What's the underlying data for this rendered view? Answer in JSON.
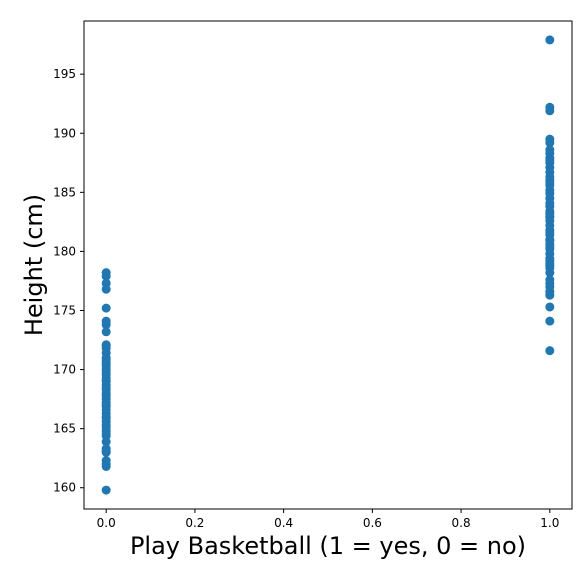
{
  "chart_data": {
    "type": "scatter",
    "title": "",
    "xlabel": "Play Basketball (1 = yes, 0 = no)",
    "ylabel": "Height (cm)",
    "xlim": [
      -0.05,
      1.05
    ],
    "ylim": [
      158.2,
      199.5
    ],
    "xticks": [
      0.0,
      0.2,
      0.4,
      0.6,
      0.8,
      1.0
    ],
    "xtick_labels": [
      "0.0",
      "0.2",
      "0.4",
      "0.6",
      "0.8",
      "1.0"
    ],
    "yticks": [
      160,
      165,
      170,
      175,
      180,
      185,
      190,
      195
    ],
    "ytick_labels": [
      "160",
      "165",
      "170",
      "175",
      "180",
      "185",
      "190",
      "195"
    ],
    "grid": false,
    "marker_color": "#1f77b4",
    "series": [
      {
        "x": [
          0,
          0,
          0,
          0,
          0,
          0,
          0,
          0,
          0,
          0,
          0,
          0,
          0,
          0,
          0,
          0,
          0,
          0,
          0,
          0,
          0,
          0,
          0,
          0,
          0,
          0,
          0,
          0,
          0,
          0,
          0,
          0,
          0,
          0,
          0,
          0,
          0,
          0,
          0,
          0,
          0,
          0,
          0,
          0,
          0,
          0,
          0,
          0,
          0,
          0
        ],
        "y": [
          178.2,
          177.9,
          177.3,
          176.8,
          175.2,
          174.1,
          173.8,
          173.2,
          172.1,
          171.8,
          171.4,
          171.0,
          170.7,
          170.3,
          170.0,
          169.6,
          169.3,
          169.0,
          168.7,
          168.3,
          168.0,
          167.8,
          167.5,
          167.2,
          166.9,
          166.6,
          166.3,
          165.9,
          165.6,
          165.1,
          164.8,
          164.4,
          163.9,
          163.3,
          163.0,
          162.3,
          161.8,
          159.8,
          170.9,
          169.8,
          168.5,
          167.0,
          165.3,
          164.6,
          163.1,
          172.0,
          170.5,
          169.1,
          166.0,
          162.0
        ]
      },
      {
        "x": [
          1,
          1,
          1,
          1,
          1,
          1,
          1,
          1,
          1,
          1,
          1,
          1,
          1,
          1,
          1,
          1,
          1,
          1,
          1,
          1,
          1,
          1,
          1,
          1,
          1,
          1,
          1,
          1,
          1,
          1,
          1,
          1,
          1,
          1,
          1,
          1,
          1,
          1,
          1,
          1,
          1,
          1,
          1,
          1,
          1,
          1,
          1,
          1,
          1,
          1
        ],
        "y": [
          197.9,
          192.2,
          191.9,
          189.5,
          189.2,
          188.3,
          187.9,
          187.5,
          187.1,
          186.7,
          186.3,
          185.6,
          185.2,
          184.9,
          184.5,
          183.8,
          183.4,
          183.0,
          182.6,
          182.2,
          181.8,
          181.4,
          181.0,
          180.6,
          180.2,
          179.8,
          179.4,
          179.0,
          178.6,
          178.2,
          177.6,
          177.0,
          176.6,
          176.3,
          175.3,
          174.1,
          171.6,
          188.6,
          186.0,
          184.1,
          182.9,
          181.6,
          180.4,
          179.2,
          178.8,
          177.3,
          183.2,
          185.8,
          187.7,
          180.9
        ]
      }
    ]
  }
}
